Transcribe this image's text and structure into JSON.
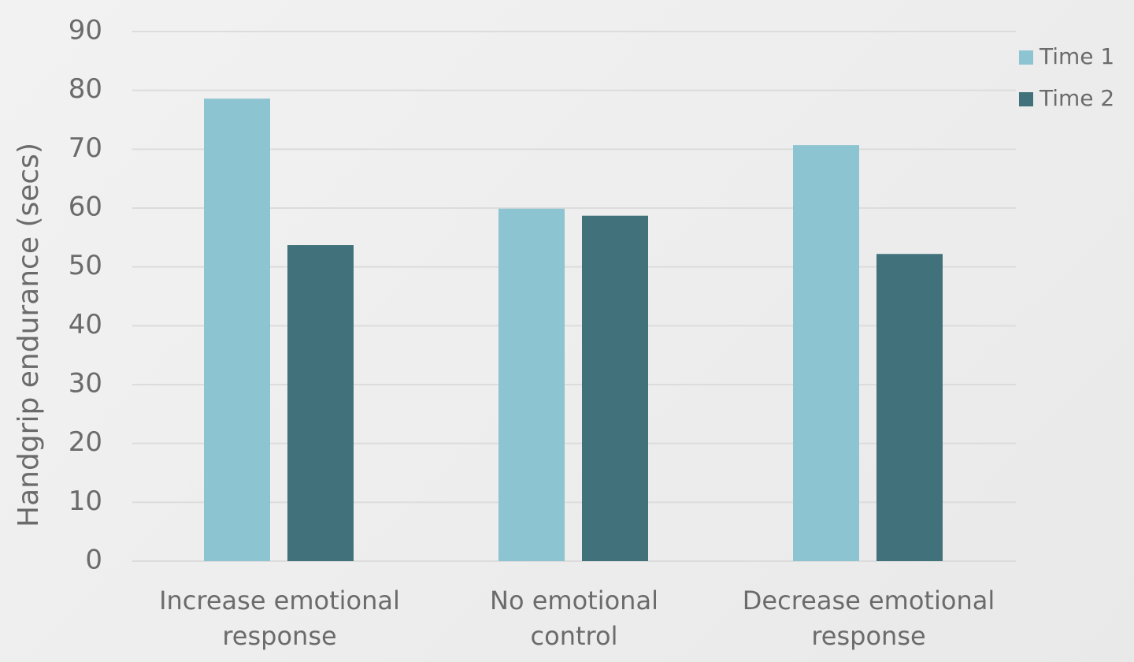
{
  "chart_data": {
    "type": "bar",
    "y_label": "Handgrip endurance (secs)",
    "categories": [
      "Increase emotional response",
      "No emotional control",
      "Decrease emotional response"
    ],
    "series": [
      {
        "name": "Time 1",
        "color": "#8dc4d1",
        "values": [
          78.6,
          59.9,
          70.7
        ]
      },
      {
        "name": "Time 2",
        "color": "#41717a",
        "values": [
          53.7,
          58.7,
          52.2
        ]
      }
    ],
    "ylim": [
      0,
      90
    ],
    "yticks": [
      0,
      10,
      20,
      30,
      40,
      50,
      60,
      70,
      80,
      90
    ],
    "grid": true,
    "legend": "top-right"
  }
}
